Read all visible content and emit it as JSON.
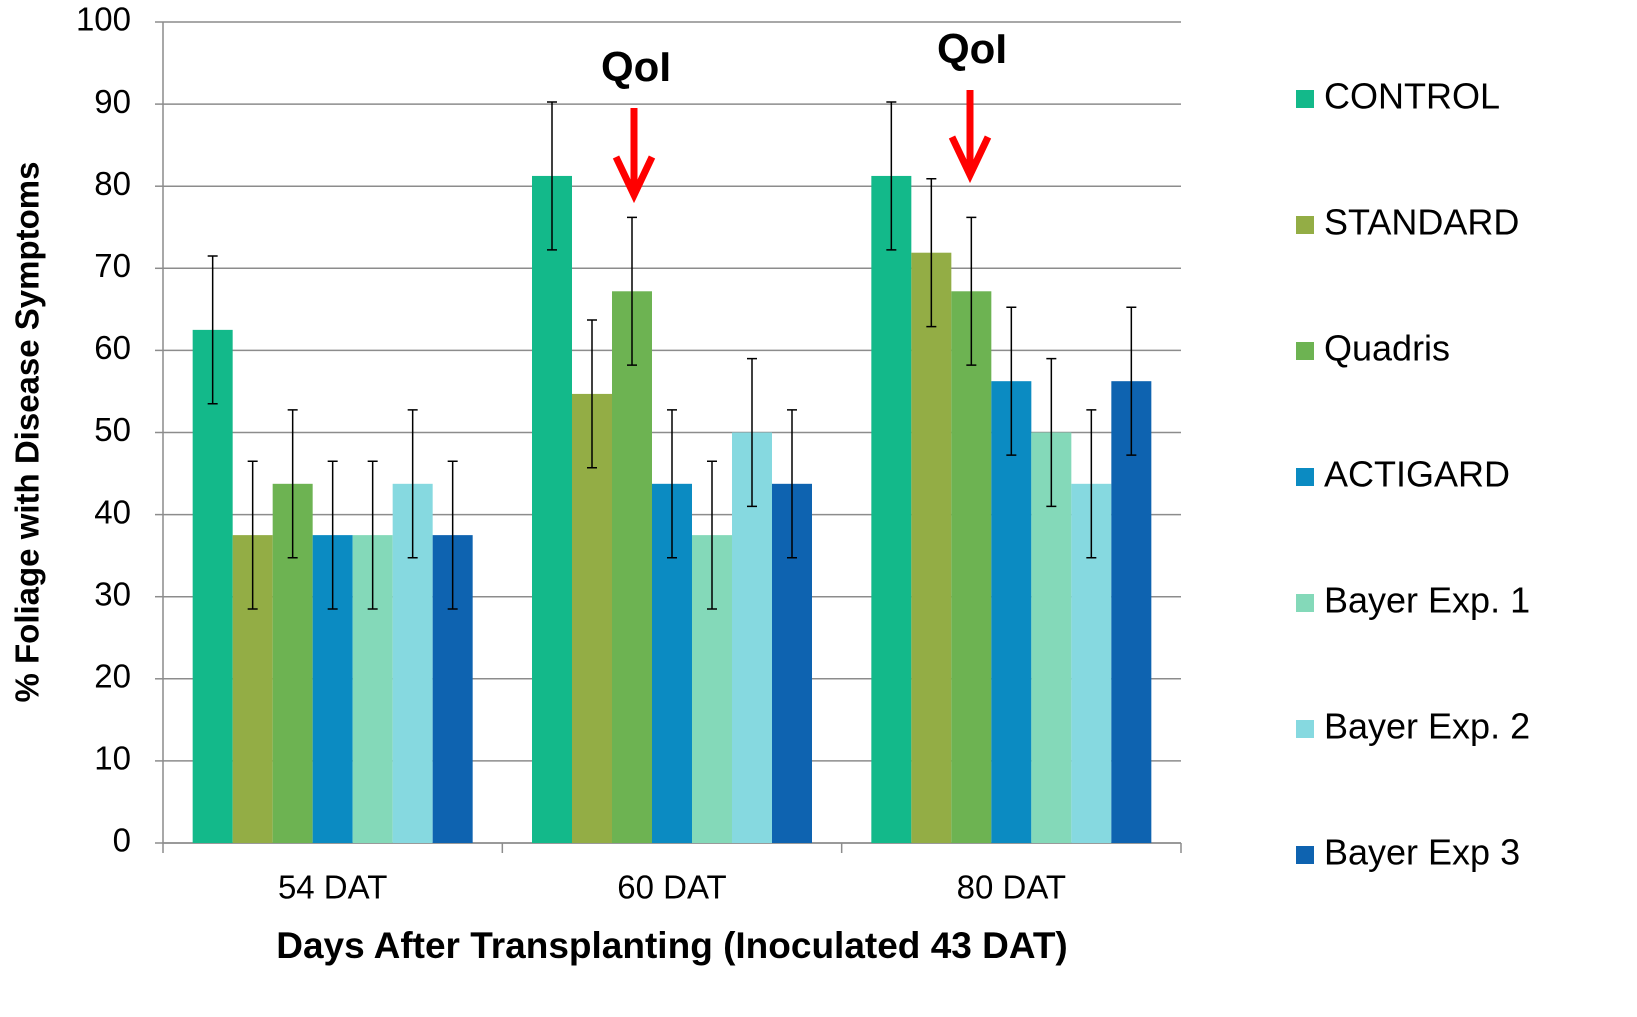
{
  "chart_data": {
    "type": "bar",
    "xlabel": "Days After Transplanting (Inoculated 43 DAT)",
    "ylabel": "% Foliage with Disease Symptoms",
    "categories": [
      "54 DAT",
      "60 DAT",
      "80 DAT"
    ],
    "series": [
      {
        "name": "CONTROL",
        "color": "#13b98a",
        "values": [
          62.5,
          81.25,
          81.25
        ],
        "errors": [
          9,
          9,
          9
        ]
      },
      {
        "name": "STANDARD",
        "color": "#93ad45",
        "values": [
          37.5,
          54.7,
          71.9
        ],
        "errors": [
          9,
          9,
          9
        ]
      },
      {
        "name": "Quadris",
        "color": "#6db352",
        "values": [
          43.75,
          67.2,
          67.2
        ],
        "errors": [
          9,
          9,
          9
        ]
      },
      {
        "name": "ACTIGARD",
        "color": "#0b8bc2",
        "values": [
          37.5,
          43.75,
          56.25
        ],
        "errors": [
          9,
          9,
          9
        ]
      },
      {
        "name": "Bayer Exp. 1",
        "color": "#84d9b9",
        "values": [
          37.5,
          37.5,
          50
        ],
        "errors": [
          9,
          9,
          9
        ]
      },
      {
        "name": "Bayer Exp. 2",
        "color": "#86d9e0",
        "values": [
          43.75,
          50,
          43.75
        ],
        "errors": [
          9,
          9,
          9
        ]
      },
      {
        "name": "Bayer Exp 3",
        "color": "#0e63b0",
        "values": [
          37.5,
          43.75,
          56.25
        ],
        "errors": [
          9,
          9,
          9
        ]
      }
    ],
    "annotations": [
      "QoI",
      "QoI"
    ],
    "ylim": [
      0,
      100
    ],
    "yticks": [
      0,
      10,
      20,
      30,
      40,
      50,
      60,
      70,
      80,
      90,
      100
    ],
    "grid": true,
    "legend": "right"
  }
}
